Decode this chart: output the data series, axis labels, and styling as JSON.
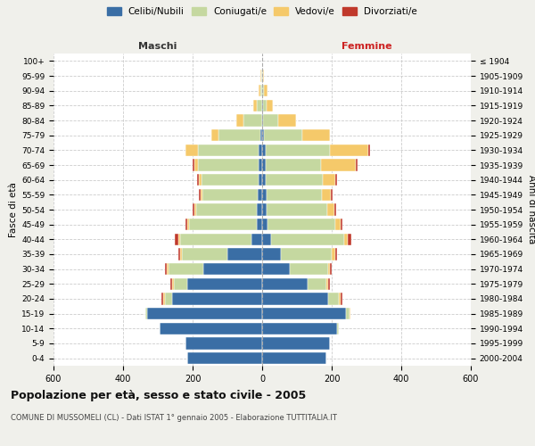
{
  "age_groups": [
    "0-4",
    "5-9",
    "10-14",
    "15-19",
    "20-24",
    "25-29",
    "30-34",
    "35-39",
    "40-44",
    "45-49",
    "50-54",
    "55-59",
    "60-64",
    "65-69",
    "70-74",
    "75-79",
    "80-84",
    "85-89",
    "90-94",
    "95-99",
    "100+"
  ],
  "birth_years": [
    "2000-2004",
    "1995-1999",
    "1990-1994",
    "1985-1989",
    "1980-1984",
    "1975-1979",
    "1970-1974",
    "1965-1969",
    "1960-1964",
    "1955-1959",
    "1950-1954",
    "1945-1949",
    "1940-1944",
    "1935-1939",
    "1930-1934",
    "1925-1929",
    "1920-1924",
    "1915-1919",
    "1910-1914",
    "1905-1909",
    "≤ 1904"
  ],
  "males": {
    "celibi": [
      215,
      220,
      295,
      330,
      260,
      215,
      170,
      100,
      30,
      15,
      15,
      12,
      10,
      10,
      10,
      5,
      0,
      0,
      0,
      0,
      0
    ],
    "coniugati": [
      0,
      0,
      0,
      5,
      20,
      40,
      100,
      130,
      205,
      195,
      175,
      160,
      165,
      175,
      175,
      120,
      55,
      15,
      5,
      2,
      0
    ],
    "vedovi": [
      0,
      0,
      0,
      0,
      5,
      5,
      5,
      5,
      5,
      5,
      5,
      5,
      6,
      10,
      35,
      20,
      20,
      10,
      5,
      2,
      0
    ],
    "divorziati": [
      0,
      0,
      0,
      0,
      5,
      5,
      5,
      5,
      10,
      5,
      5,
      5,
      5,
      5,
      0,
      0,
      0,
      0,
      0,
      0,
      0
    ]
  },
  "females": {
    "nubili": [
      185,
      195,
      215,
      240,
      190,
      130,
      80,
      55,
      25,
      15,
      12,
      12,
      10,
      10,
      10,
      5,
      2,
      2,
      0,
      0,
      0
    ],
    "coniugate": [
      0,
      0,
      5,
      10,
      30,
      55,
      110,
      145,
      210,
      195,
      175,
      160,
      165,
      160,
      185,
      110,
      45,
      10,
      5,
      2,
      0
    ],
    "vedove": [
      0,
      0,
      0,
      5,
      5,
      5,
      5,
      10,
      10,
      15,
      20,
      25,
      35,
      100,
      110,
      80,
      50,
      20,
      10,
      3,
      0
    ],
    "divorziate": [
      0,
      0,
      0,
      0,
      5,
      5,
      5,
      5,
      12,
      5,
      5,
      5,
      5,
      5,
      5,
      0,
      0,
      0,
      0,
      0,
      0
    ]
  },
  "colors": {
    "celibi": "#3a6ea5",
    "coniugati": "#c5d8a0",
    "vedovi": "#f5c96a",
    "divorziati": "#c0392b"
  },
  "title": "Popolazione per età, sesso e stato civile - 2005",
  "subtitle": "COMUNE DI MUSSOMELI (CL) - Dati ISTAT 1° gennaio 2005 - Elaborazione TUTTITALIA.IT",
  "xlabel_left": "Maschi",
  "xlabel_right": "Femmine",
  "ylabel_left": "Fasce di età",
  "ylabel_right": "Anni di nascita",
  "xlim": 600,
  "background_color": "#f0f0eb",
  "plot_bg": "#ffffff"
}
